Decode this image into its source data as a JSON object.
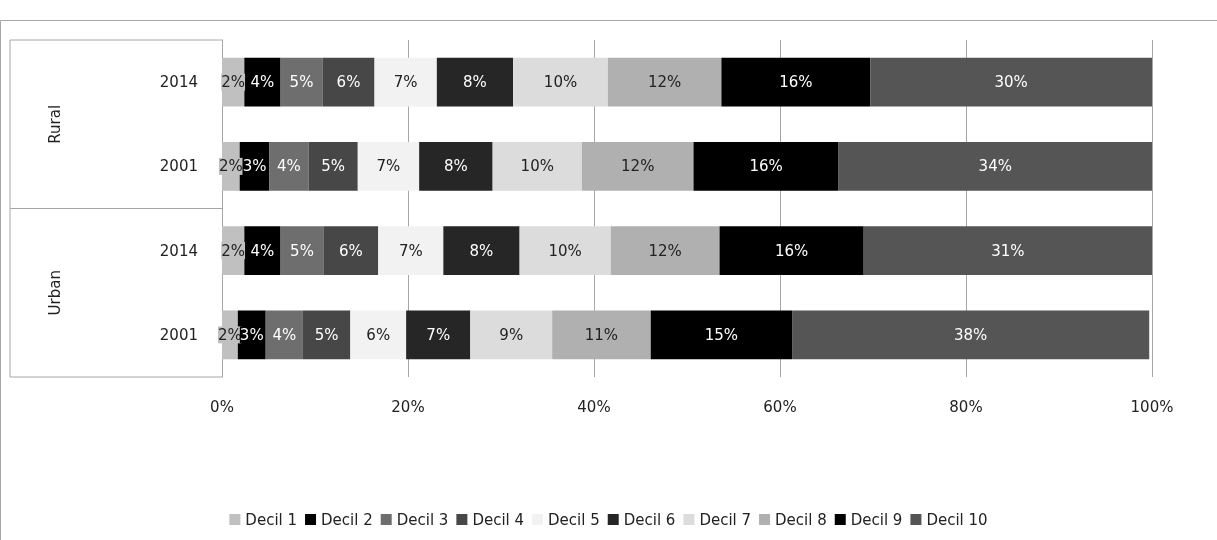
{
  "chart_data": {
    "type": "bar",
    "orientation": "horizontal",
    "stacked": true,
    "categories": [
      "2014",
      "2001",
      "2014",
      "2001"
    ],
    "annotations": [
      "Rural",
      "Urban"
    ],
    "series": [
      {
        "name": "Decil 1",
        "color": "#c0c0c0",
        "values": [
          2.4,
          1.9,
          2.4,
          1.7
        ],
        "value_labels": [
          "2%",
          "2%",
          "2%",
          "2%"
        ]
      },
      {
        "name": "Decil 2",
        "color": "#000000",
        "values": [
          3.9,
          3.2,
          3.9,
          3.0
        ],
        "value_labels": [
          "4%",
          "3%",
          "4%",
          "3%"
        ]
      },
      {
        "name": "Decil 3",
        "color": "#6e6e6e",
        "values": [
          4.5,
          4.2,
          4.6,
          4.0
        ],
        "value_labels": [
          "5%",
          "4%",
          "5%",
          "4%"
        ]
      },
      {
        "name": "Decil 4",
        "color": "#474747",
        "values": [
          5.6,
          5.3,
          5.9,
          5.1
        ],
        "value_labels": [
          "6%",
          "5%",
          "6%",
          "5%"
        ]
      },
      {
        "name": "Decil 5",
        "color": "#f2f2f2",
        "values": [
          6.7,
          6.6,
          7.0,
          6.0
        ],
        "value_labels": [
          "7%",
          "7%",
          "7%",
          "6%"
        ]
      },
      {
        "name": "Decil 6",
        "color": "#262626",
        "values": [
          8.2,
          7.9,
          8.2,
          6.9
        ],
        "value_labels": [
          "8%",
          "8%",
          "8%",
          "7%"
        ]
      },
      {
        "name": "Decil 7",
        "color": "#dcdcdc",
        "values": [
          10.2,
          9.6,
          9.8,
          8.8
        ],
        "value_labels": [
          "10%",
          "10%",
          "10%",
          "9%"
        ]
      },
      {
        "name": "Decil 8",
        "color": "#b0b0b0",
        "values": [
          12.2,
          12.0,
          11.7,
          10.6
        ],
        "value_labels": [
          "12%",
          "12%",
          "12%",
          "11%"
        ]
      },
      {
        "name": "Decil 9",
        "color": "#000000",
        "values": [
          16.0,
          15.6,
          15.5,
          15.2
        ],
        "value_labels": [
          "16%",
          "16%",
          "16%",
          "15%"
        ]
      },
      {
        "name": "Decil 10",
        "color": "#555555",
        "values": [
          30.3,
          33.7,
          31.0,
          38.4
        ],
        "value_labels": [
          "30%",
          "34%",
          "31%",
          "38%"
        ]
      }
    ],
    "xlim": [
      0,
      100
    ],
    "xticks": [
      {
        "value": 0,
        "label": "0%"
      },
      {
        "value": 20,
        "label": "20%"
      },
      {
        "value": 40,
        "label": "40%"
      },
      {
        "value": 60,
        "label": "60%"
      },
      {
        "value": 80,
        "label": "80%"
      },
      {
        "value": 100,
        "label": "100%"
      }
    ],
    "grid": "x",
    "legend": "bottom"
  }
}
